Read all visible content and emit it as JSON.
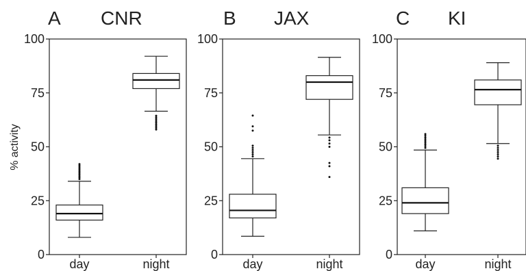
{
  "y_axis_label": "% activity",
  "chart_data": [
    {
      "type": "box",
      "panel": "A",
      "title": "CNR",
      "categories": [
        "day",
        "night"
      ],
      "ylim": [
        0,
        100
      ],
      "yticks": [
        0,
        25,
        50,
        75,
        100
      ],
      "ylabel": "% activity",
      "boxes": [
        {
          "category": "day",
          "whisker_low": 8,
          "q1": 16,
          "median": 19,
          "q3": 23,
          "whisker_high": 34,
          "outliers": [
            35,
            35.7,
            36.4,
            37.1,
            37.8,
            38.5,
            39.2,
            39.9,
            40.6,
            41.3,
            42
          ]
        },
        {
          "category": "night",
          "whisker_low": 66.5,
          "q1": 77,
          "median": 81,
          "q3": 84,
          "whisker_high": 92,
          "outliers": [
            58,
            58.8,
            59.6,
            60.4,
            61.2,
            62,
            62.8,
            63.6,
            64.4
          ]
        }
      ]
    },
    {
      "type": "box",
      "panel": "B",
      "title": "JAX",
      "categories": [
        "day",
        "night"
      ],
      "ylim": [
        0,
        100
      ],
      "yticks": [
        0,
        25,
        50,
        75,
        100
      ],
      "boxes": [
        {
          "category": "day",
          "whisker_low": 8.5,
          "q1": 17,
          "median": 20.5,
          "q3": 28,
          "whisker_high": 44.5,
          "outliers": [
            45.5,
            46.5,
            47.5,
            48.5,
            49.5,
            50.5,
            57.5,
            59.5,
            64.5
          ]
        },
        {
          "category": "night",
          "whisker_low": 55.5,
          "q1": 72,
          "median": 80,
          "q3": 83,
          "whisker_high": 91.5,
          "outliers": [
            50,
            51.5,
            53,
            54.3,
            41,
            42.5,
            36
          ]
        }
      ]
    },
    {
      "type": "box",
      "panel": "C",
      "title": "KI",
      "categories": [
        "day",
        "night"
      ],
      "ylim": [
        0,
        100
      ],
      "yticks": [
        0,
        25,
        50,
        75,
        100
      ],
      "boxes": [
        {
          "category": "day",
          "whisker_low": 11,
          "q1": 19,
          "median": 24,
          "q3": 31,
          "whisker_high": 48.5,
          "outliers": [
            49.5,
            50.3,
            51.1,
            51.9,
            52.7,
            53.5,
            54.3,
            55.1,
            55.9
          ]
        },
        {
          "category": "night",
          "whisker_low": 51.5,
          "q1": 69.5,
          "median": 76.5,
          "q3": 81,
          "whisker_high": 89,
          "outliers": [
            44.5,
            45.5,
            46.5,
            47.5,
            48.5,
            49.5,
            50.5
          ]
        }
      ]
    }
  ]
}
